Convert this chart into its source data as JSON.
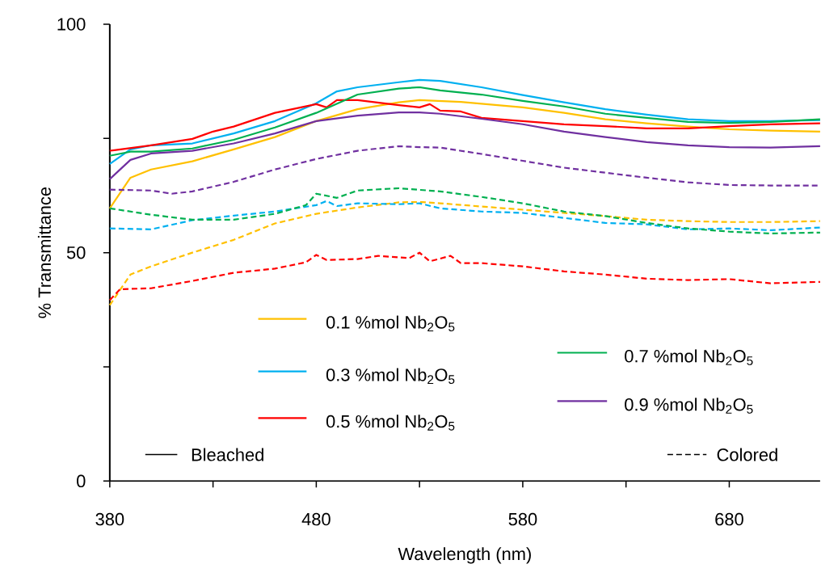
{
  "chart_data": {
    "type": "line",
    "xlabel": "Wavelength (nm)",
    "ylabel": "% Transmittance",
    "xlim": [
      380,
      724
    ],
    "ylim": [
      0,
      100
    ],
    "xticks": [
      380,
      {
        "value": 430,
        "label": null
      },
      480,
      {
        "value": 530,
        "label": null
      },
      580,
      {
        "value": 630,
        "label": null
      },
      680
    ],
    "yticks": [
      0,
      {
        "value": 25,
        "label": null
      },
      50,
      {
        "value": 75,
        "label": null
      },
      100
    ],
    "legend": "bottom",
    "annotations": [
      "Bleached",
      "Colored"
    ],
    "series": [
      {
        "name": "0.1 %mol Nb$_{2}$O$_{5}$",
        "color": "#ffc000",
        "line_style": "solid",
        "x": [
          380,
          390,
          400,
          420,
          440,
          460,
          480,
          500,
          520,
          530,
          550,
          580,
          600,
          620,
          640,
          660,
          680,
          700,
          724
        ],
        "values": [
          59.7,
          66.4,
          68.2,
          70,
          72.6,
          75.3,
          78.8,
          81.4,
          82.9,
          83.4,
          83,
          81.8,
          80.6,
          79.2,
          78.3,
          77.6,
          77,
          76.7,
          76.5
        ]
      },
      {
        "name": "0.3 %mol Nb$_{2}$O$_{5}$",
        "color": "#00b0f0",
        "line_style": "solid",
        "x": [
          380,
          390,
          400,
          420,
          440,
          460,
          480,
          490,
          500,
          520,
          530,
          540,
          560,
          580,
          600,
          620,
          640,
          660,
          680,
          700,
          724
        ],
        "values": [
          69.4,
          72.6,
          73.5,
          73.9,
          76.1,
          78.8,
          82.7,
          85.3,
          86.2,
          87.3,
          87.8,
          87.6,
          86.2,
          84.5,
          82.9,
          81.4,
          80.2,
          79.2,
          78.8,
          78.8,
          79
        ]
      },
      {
        "name": "0.5 %mol Nb$_{2}$O$_{5}$",
        "color": "#ff0000",
        "line_style": "solid",
        "x": [
          380,
          400,
          420,
          430,
          440,
          460,
          480,
          485,
          490,
          500,
          520,
          530,
          535,
          540,
          550,
          560,
          580,
          600,
          620,
          640,
          660,
          680,
          700,
          724
        ],
        "values": [
          72.3,
          73.5,
          74.9,
          76.5,
          77.6,
          80.6,
          82.5,
          81.8,
          83.4,
          83.4,
          82.3,
          81.8,
          82.5,
          81.1,
          80.9,
          79.5,
          78.8,
          78.1,
          77.7,
          77.2,
          77.2,
          77.7,
          78.1,
          78.3
        ]
      },
      {
        "name": "0.7 %mol Nb$_{2}$O$_{5}$",
        "color": "#00b050",
        "line_style": "solid",
        "x": [
          380,
          390,
          400,
          420,
          440,
          460,
          480,
          500,
          520,
          530,
          540,
          560,
          580,
          600,
          620,
          640,
          660,
          680,
          700,
          724
        ],
        "values": [
          71.2,
          72.1,
          72.1,
          72.8,
          74.7,
          77.4,
          80.6,
          84.6,
          85.9,
          86.2,
          85.5,
          84.6,
          83.2,
          82,
          80.4,
          79.5,
          78.6,
          78.4,
          78.6,
          79.2
        ]
      },
      {
        "name": "0.9 %mol Nb$_{2}$O$_{5}$",
        "color": "#7030a0",
        "line_style": "solid",
        "x": [
          380,
          390,
          400,
          420,
          440,
          460,
          480,
          500,
          520,
          530,
          540,
          560,
          580,
          600,
          620,
          640,
          660,
          680,
          700,
          724
        ],
        "values": [
          66.1,
          70.3,
          71.7,
          72.3,
          73.9,
          76.1,
          78.8,
          80,
          80.7,
          80.7,
          80.4,
          79.3,
          78.1,
          76.5,
          75.3,
          74.2,
          73.5,
          73.1,
          73,
          73.3
        ]
      },
      {
        "color": "#ffc000",
        "line_style": "dashed",
        "x": [
          380,
          390,
          400,
          420,
          440,
          460,
          480,
          500,
          520,
          530,
          540,
          560,
          580,
          600,
          620,
          640,
          660,
          680,
          700,
          724
        ],
        "values": [
          38.5,
          45.2,
          47,
          50,
          52.8,
          56.4,
          58.5,
          59.9,
          61,
          61.1,
          60.8,
          60.1,
          59.4,
          58.7,
          58,
          57.2,
          56.9,
          56.7,
          56.7,
          56.9
        ]
      },
      {
        "color": "#00b0f0",
        "line_style": "dashed",
        "x": [
          380,
          400,
          420,
          440,
          460,
          480,
          485,
          490,
          500,
          520,
          530,
          540,
          560,
          580,
          600,
          620,
          640,
          660,
          680,
          700,
          724
        ],
        "values": [
          55.3,
          55.1,
          57.1,
          58.1,
          59,
          60.4,
          61.3,
          60.2,
          60.8,
          60.6,
          60.8,
          59.7,
          59,
          58.7,
          57.6,
          56.5,
          56.2,
          55.1,
          55.3,
          54.9,
          55.5
        ]
      },
      {
        "color": "#ff0000",
        "line_style": "dashed",
        "x": [
          380,
          385,
          400,
          420,
          440,
          460,
          475,
          480,
          485,
          500,
          510,
          525,
          530,
          535,
          545,
          550,
          560,
          580,
          600,
          620,
          640,
          660,
          680,
          700,
          724
        ],
        "values": [
          39.6,
          42,
          42.2,
          43.8,
          45.6,
          46.5,
          47.9,
          49.5,
          48.4,
          48.6,
          49.3,
          48.8,
          50,
          48.1,
          49.3,
          47.7,
          47.7,
          47,
          45.9,
          45.2,
          44.3,
          44,
          44.2,
          43.3,
          43.6
        ]
      },
      {
        "color": "#00b050",
        "line_style": "dashed",
        "x": [
          380,
          400,
          420,
          440,
          460,
          475,
          480,
          490,
          500,
          520,
          540,
          560,
          580,
          600,
          620,
          640,
          660,
          680,
          700,
          724
        ],
        "values": [
          59.7,
          58.3,
          57.2,
          57.2,
          58.5,
          60.4,
          62.9,
          62,
          63.6,
          64.1,
          63.4,
          62.2,
          60.8,
          59,
          58,
          56.5,
          55.3,
          54.6,
          54.2,
          54.4
        ]
      },
      {
        "color": "#7030a0",
        "line_style": "dashed",
        "x": [
          380,
          400,
          410,
          420,
          440,
          460,
          480,
          500,
          520,
          530,
          540,
          560,
          580,
          600,
          620,
          640,
          660,
          680,
          700,
          724
        ],
        "values": [
          63.8,
          63.6,
          62.9,
          63.4,
          65.5,
          68.2,
          70.5,
          72.3,
          73.3,
          73.1,
          73,
          71.6,
          70.1,
          68.6,
          67.5,
          66.4,
          65.4,
          64.8,
          64.7,
          64.7
        ]
      }
    ]
  }
}
